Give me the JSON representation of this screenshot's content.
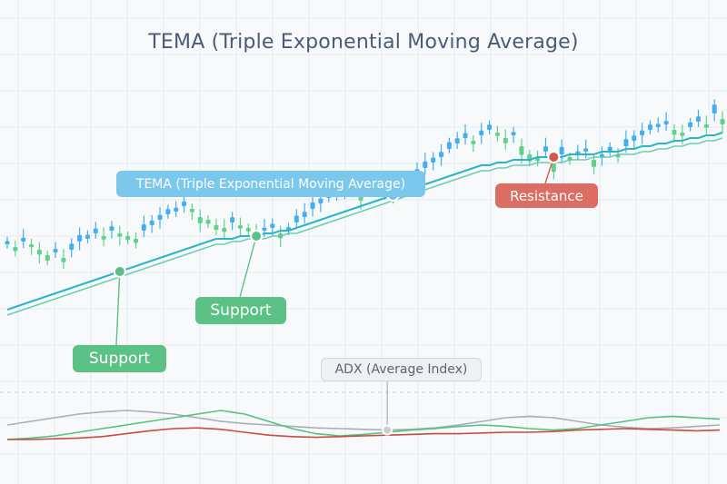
{
  "colors": {
    "background": "#f7f9fb",
    "grid": "#e3eaf0",
    "bull_candle": "#5ed28c",
    "bear_candle": "#45aef0",
    "tema_line": "#2bb5c9",
    "tema_line_2": "#55c6a4",
    "adx_gray": "#a9adb6",
    "adx_green": "#4fc47e",
    "adx_red": "#cc4a3e",
    "support_marker": "#5cbf88",
    "resistance_marker": "#d2574c",
    "tema_marker": "#6cc3e8"
  },
  "chart_data": [
    {
      "type": "candlestick",
      "title": "TEMA (Triple Exponential Moving Average)",
      "xlabel": "",
      "ylabel": "",
      "ylim": [
        0,
        100
      ],
      "grid": true,
      "close": [
        42,
        41,
        43,
        42,
        40,
        38,
        39,
        37,
        40,
        43,
        44,
        46,
        45,
        47,
        46,
        45,
        44,
        47,
        49,
        51,
        53,
        54,
        56,
        55,
        52,
        51,
        49,
        48,
        50,
        49,
        48,
        47,
        47,
        48,
        46,
        47,
        50,
        52,
        55,
        57,
        59,
        60,
        61,
        62,
        60,
        61,
        63,
        62,
        61,
        62,
        64,
        67,
        70,
        72,
        74,
        77,
        79,
        81,
        80,
        82,
        84,
        83,
        81,
        82,
        78,
        75,
        74,
        76,
        72,
        75,
        74,
        75,
        76,
        73,
        74,
        76,
        75,
        78,
        80,
        82,
        84,
        85,
        86,
        84,
        83,
        85,
        87,
        86,
        90,
        88
      ],
      "open_offset": [
        1.2,
        -1.5,
        1.4,
        -1.1,
        -1.8,
        -2.0,
        1.3,
        -1.6,
        2.2,
        2.4,
        1.5,
        1.8,
        -1.3,
        1.6,
        -1.2,
        -1.4,
        -1.5,
        2.3,
        1.7,
        1.8,
        1.9,
        1.4,
        1.7,
        -1.2,
        -2.3,
        -1.5,
        -1.7,
        -1.4,
        1.9,
        -1.2,
        -1.3,
        -1.4,
        1.1,
        1.5,
        -1.8,
        1.3,
        2.5,
        1.9,
        2.4,
        1.8,
        1.9,
        1.3,
        1.2,
        1.4,
        -2.0,
        1.3,
        1.8,
        -1.2,
        -1.3,
        1.1,
        1.8,
        2.6,
        2.4,
        1.8,
        1.9,
        2.5,
        1.9,
        1.8,
        -1.3,
        1.8,
        1.9,
        -1.2,
        -1.9,
        1.2,
        -3.2,
        -2.6,
        -1.4,
        1.9,
        -3.4,
        2.7,
        -1.2,
        1.1,
        1.2,
        -2.6,
        1.1,
        1.8,
        -1.1,
        2.6,
        1.9,
        1.8,
        1.9,
        1.2,
        1.3,
        -1.8,
        -1.2,
        1.8,
        1.9,
        -1.2,
        3.3,
        -2.0
      ],
      "tema": [
        18,
        19,
        20,
        21,
        22,
        23,
        24,
        25,
        26,
        27,
        28,
        29,
        30,
        31,
        32,
        33,
        34,
        35,
        36,
        37,
        38,
        39,
        40,
        41,
        42,
        43,
        44,
        44,
        44,
        45,
        45,
        45,
        46,
        46,
        47,
        47,
        48,
        49,
        50,
        51,
        52,
        53,
        54,
        55,
        56,
        57,
        58,
        59,
        60,
        61,
        62,
        63,
        64,
        65,
        66,
        67,
        68,
        69,
        70,
        71,
        71,
        72,
        72,
        73,
        73,
        73,
        74,
        74,
        74,
        74,
        75,
        75,
        75,
        75,
        76,
        76,
        76,
        77,
        77,
        78,
        78,
        79,
        79,
        80,
        80,
        81,
        81,
        82,
        82,
        83
      ],
      "tema_2": [
        16,
        17,
        18,
        19,
        20,
        21,
        22,
        23,
        24,
        25,
        26,
        27,
        28,
        29,
        30,
        31,
        32,
        33,
        34,
        35,
        36,
        37,
        38,
        39,
        40,
        41,
        42,
        42,
        43,
        43,
        44,
        44,
        44,
        45,
        45,
        46,
        46,
        47,
        48,
        49,
        50,
        51,
        52,
        53,
        54,
        55,
        56,
        57,
        58,
        59,
        60,
        61,
        62,
        63,
        64,
        65,
        66,
        67,
        68,
        69,
        69,
        70,
        70,
        71,
        71,
        71,
        72,
        72,
        72,
        72,
        73,
        73,
        73,
        74,
        74,
        74,
        75,
        75,
        75,
        76,
        76,
        77,
        77,
        78,
        78,
        79,
        79,
        80,
        80,
        81
      ]
    },
    {
      "type": "line",
      "title": "ADX (Average Index)",
      "ylim": [
        0,
        100
      ],
      "series": [
        {
          "values": [
            40,
            45,
            50,
            55,
            58,
            60,
            58,
            55,
            50,
            45,
            42,
            40,
            38,
            36,
            35,
            34,
            33,
            34,
            36,
            40,
            45,
            50,
            52,
            50,
            45,
            40,
            37,
            35,
            36,
            38,
            40
          ]
        },
        {
          "values": [
            20,
            22,
            25,
            30,
            35,
            40,
            45,
            50,
            55,
            60,
            55,
            45,
            35,
            28,
            25,
            27,
            30,
            33,
            35,
            38,
            40,
            38,
            35,
            33,
            35,
            40,
            45,
            50,
            52,
            50,
            48
          ]
        },
        {
          "values": [
            20,
            20,
            21,
            22,
            24,
            28,
            32,
            35,
            36,
            34,
            30,
            26,
            24,
            23,
            24,
            25,
            26,
            27,
            28,
            28,
            29,
            30,
            30,
            31,
            33,
            34,
            35,
            34,
            33,
            32,
            33
          ]
        }
      ]
    }
  ],
  "annotations": {
    "tema_label": "TEMA (Triple Exponential Moving Average)",
    "resistance_label": "Resistance",
    "support_label_1": "Support",
    "support_label_2": "Support",
    "adx_label": "ADX (Average Index)"
  }
}
